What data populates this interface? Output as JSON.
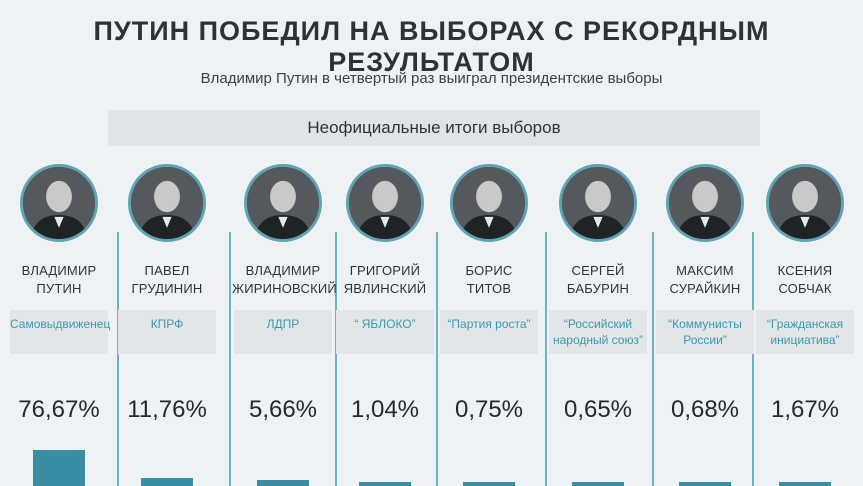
{
  "header": {
    "title": "ПУТИН ПОБЕДИЛ НА ВЫБОРАХ С РЕКОРДНЫМ РЕЗУЛЬТАТОМ",
    "subtitle": "Владимир Путин в четвертый раз выиграл президентские выборы",
    "banner": "Неофициальные итоги выборов"
  },
  "colors": {
    "accent": "#3a8ea3",
    "party_text": "#3d97ad",
    "divider": "#6fb3c1"
  },
  "chart_data": {
    "type": "bar",
    "categories": [
      "Владимир Путин",
      "Павел Грудинин",
      "Владимир Жириновский",
      "Григорий Явлинский",
      "Борис Титов",
      "Сергей Бабурин",
      "Максим Сурайкин",
      "Ксения Собчак"
    ],
    "values": [
      76.67,
      11.76,
      5.66,
      1.04,
      0.75,
      0.65,
      0.68,
      1.67
    ],
    "candidates": [
      {
        "name_line1": "ВЛАДИМИР",
        "name_line2": "ПУТИН",
        "party": "Самовыдвиженец",
        "pct_label": "76,67%",
        "value": 76.67
      },
      {
        "name_line1": "ПАВЕЛ",
        "name_line2": "ГРУДИНИН",
        "party": "КПРФ",
        "pct_label": "11,76%",
        "value": 11.76
      },
      {
        "name_line1": "ВЛАДИМИР",
        "name_line2": "ЖИРИНОВСКИЙ",
        "party": "ЛДПР",
        "pct_label": "5,66%",
        "value": 5.66
      },
      {
        "name_line1": "ГРИГОРИЙ",
        "name_line2": "ЯВЛИНСКИЙ",
        "party": "“ ЯБЛОКО”",
        "pct_label": "1,04%",
        "value": 1.04
      },
      {
        "name_line1": "БОРИС",
        "name_line2": "ТИТОВ",
        "party": "“Партия роста”",
        "pct_label": "0,75%",
        "value": 0.75
      },
      {
        "name_line1": "СЕРГЕЙ",
        "name_line2": "БАБУРИН",
        "party": "“Российский народный союз”",
        "pct_label": "0,65%",
        "value": 0.65
      },
      {
        "name_line1": "МАКСИМ",
        "name_line2": "СУРАЙКИН",
        "party": "“Коммунисты России”",
        "pct_label": "0,68%",
        "value": 0.68
      },
      {
        "name_line1": "КСЕНИЯ",
        "name_line2": "СОБЧАК",
        "party": "“Гражданская инициатива”",
        "pct_label": "1,67%",
        "value": 1.67
      }
    ]
  }
}
